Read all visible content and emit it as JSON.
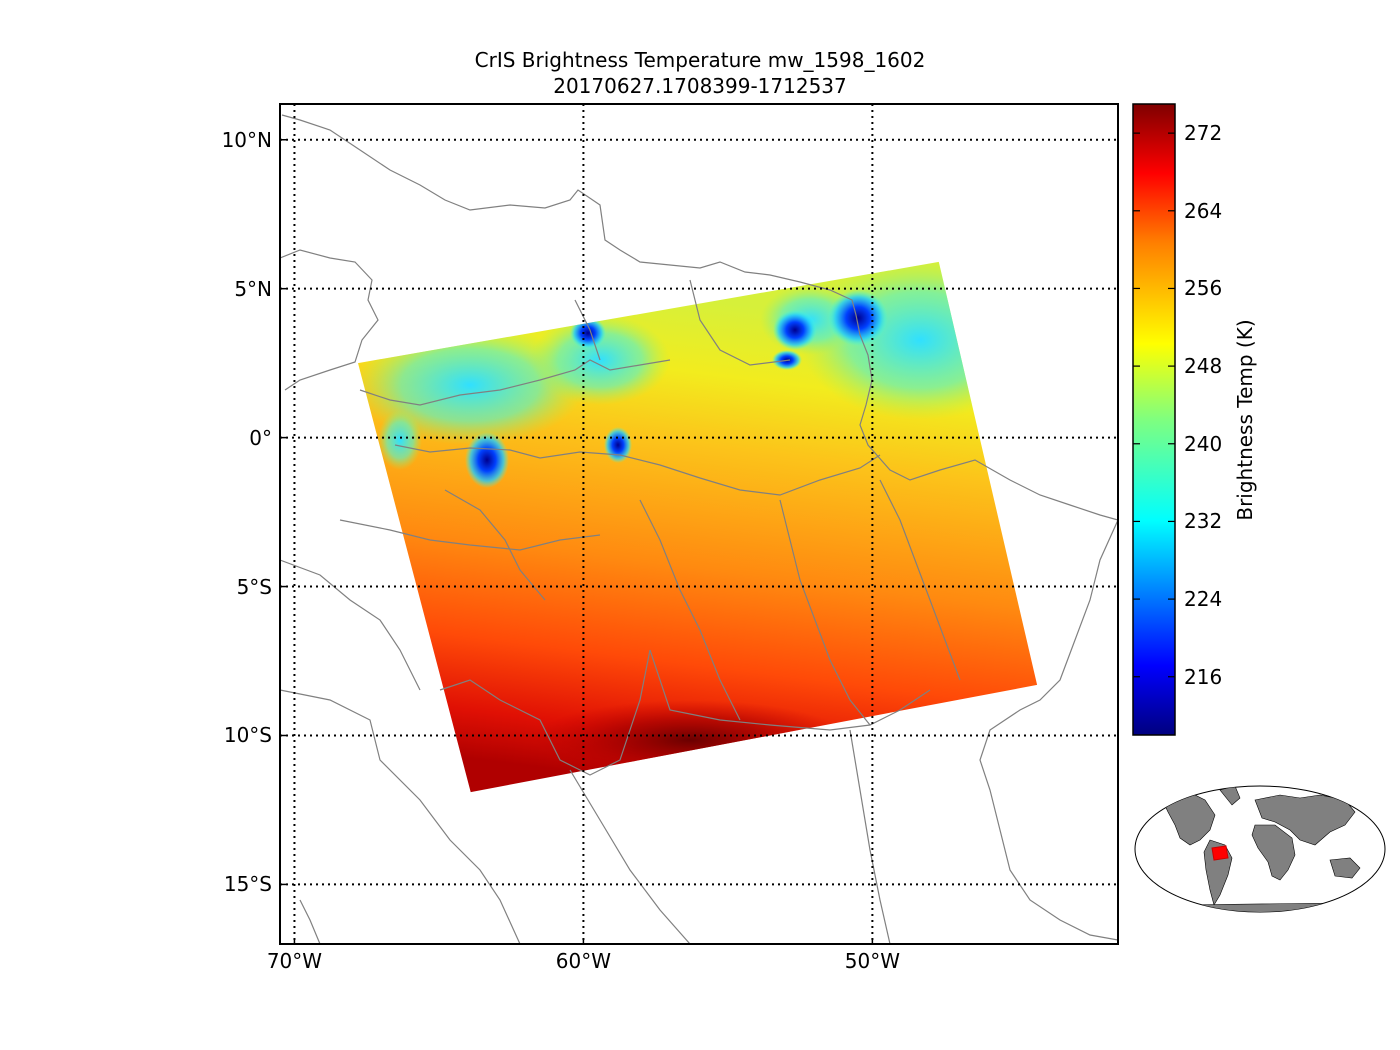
{
  "title": {
    "line1": "CrIS Brightness Temperature mw_1598_1602",
    "line2": "20170627.1708399-1712537"
  },
  "map": {
    "lon_range": [
      -70.5,
      -41.5
    ],
    "lat_range": [
      -17,
      11.2
    ],
    "lat_ticks": [
      {
        "value": 10,
        "label": "10°N"
      },
      {
        "value": 5,
        "label": "5°N"
      },
      {
        "value": 0,
        "label": "0°"
      },
      {
        "value": -5,
        "label": "5°S"
      },
      {
        "value": -10,
        "label": "10°S"
      },
      {
        "value": -15,
        "label": "15°S"
      }
    ],
    "lon_ticks": [
      {
        "value": -70,
        "label": "70°W"
      },
      {
        "value": -60,
        "label": "60°W"
      },
      {
        "value": -50,
        "label": "50°W"
      }
    ],
    "swath_corners": [
      {
        "lon": -67.8,
        "lat": 2.5
      },
      {
        "lon": -47.7,
        "lat": 5.9
      },
      {
        "lon": -44.3,
        "lat": -8.3
      },
      {
        "lon": -63.9,
        "lat": -11.9
      }
    ]
  },
  "colorbar": {
    "label": "Brightness Temp (K)",
    "min": 210,
    "max": 275,
    "ticks": [
      "216",
      "224",
      "232",
      "240",
      "248",
      "256",
      "264",
      "272"
    ],
    "colormap": [
      "#00007f",
      "#0000ff",
      "#007fff",
      "#00ffff",
      "#7fff7f",
      "#ffff00",
      "#ff7f00",
      "#ff0000",
      "#7f0000"
    ]
  },
  "inset": {
    "name": "global-locator-map",
    "highlight_color": "#ff0000",
    "land_color": "#808080"
  }
}
